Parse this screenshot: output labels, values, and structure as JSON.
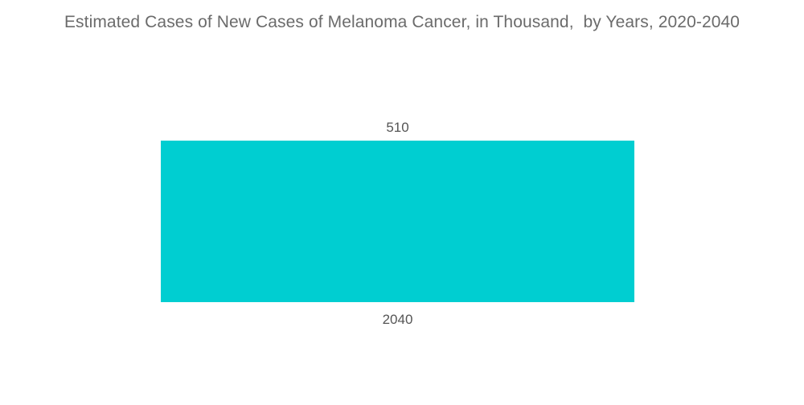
{
  "chart_data": {
    "type": "bar",
    "title": "Estimated Cases of New Cases of Melanoma Cancer, in Thousand,  by Years, 2020-2040",
    "categories": [
      "2040"
    ],
    "values": [
      510
    ],
    "data_labels": [
      "510"
    ],
    "xlabel": "",
    "ylabel": "",
    "ylim": [
      0,
      510
    ],
    "grid": false,
    "legend": "none",
    "bar_color": "#00ced1"
  }
}
